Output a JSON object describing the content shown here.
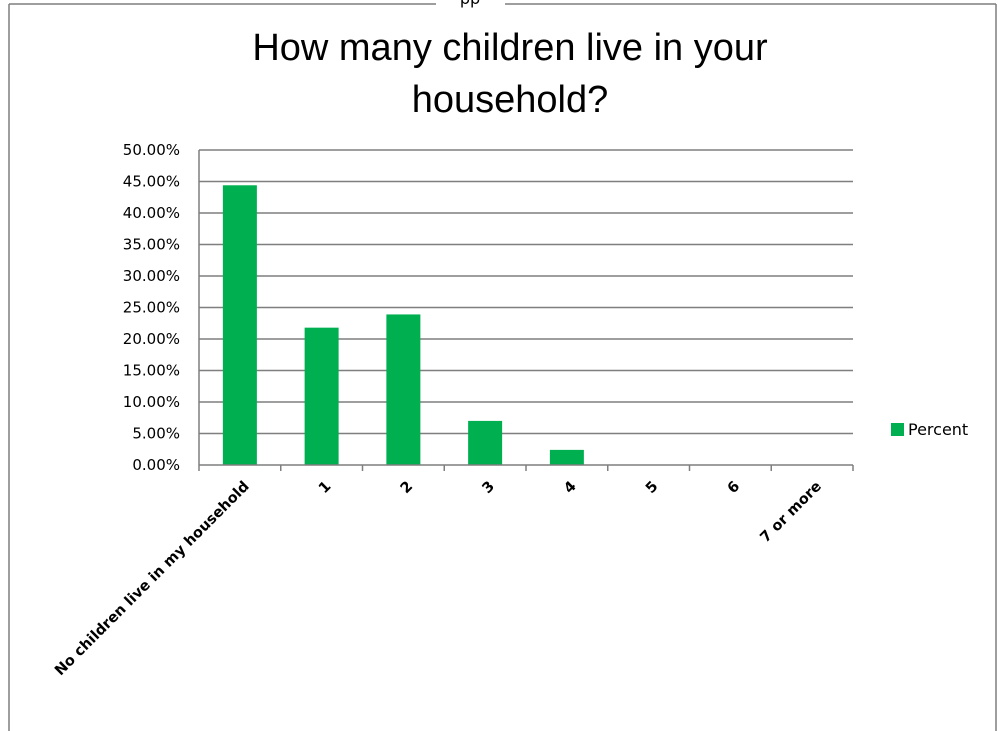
{
  "window": {
    "top_label": "pp"
  },
  "chart_data": {
    "type": "bar",
    "title_lines": [
      "How many children live in your",
      "household?"
    ],
    "categories": [
      "No children live in my household",
      "1",
      "2",
      "3",
      "4",
      "5",
      "6",
      "7 or more"
    ],
    "series": [
      {
        "name": "Percent",
        "values": [
          44.4,
          21.8,
          23.9,
          7.0,
          2.4,
          0,
          0,
          0
        ]
      }
    ],
    "ylim": [
      0,
      50
    ],
    "yticks": [
      "0.00%",
      "5.00%",
      "10.00%",
      "15.00%",
      "20.00%",
      "25.00%",
      "30.00%",
      "35.00%",
      "40.00%",
      "45.00%",
      "50.00%"
    ],
    "xlabel": "",
    "ylabel": "",
    "grid": true,
    "legend_position": "right",
    "colors": {
      "bar": "#00b050"
    }
  }
}
